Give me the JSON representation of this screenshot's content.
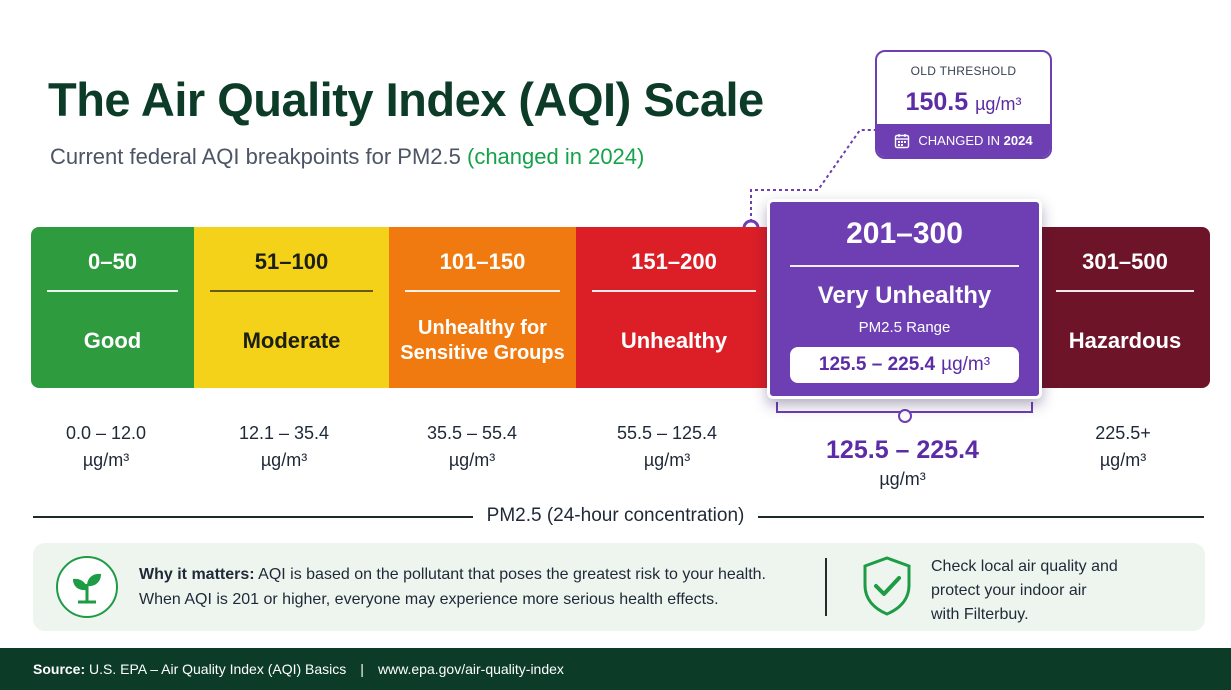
{
  "header": {
    "title": "The Air Quality Index (AQI) Scale",
    "subtitle_main": "Current federal AQI breakpoints for PM2.5",
    "subtitle_highlight": "(changed in 2024)"
  },
  "callout": {
    "label": "OLD THRESHOLD",
    "value": "150.5",
    "unit": "µg/m³",
    "footer_prefix": "CHANGED IN",
    "footer_year": "2024",
    "icon": "calendar-icon"
  },
  "chart_data": {
    "type": "table",
    "title": "The Air Quality Index (AQI) Scale",
    "subtitle": "Current federal AQI breakpoints for PM2.5 (changed in 2024)",
    "xlabel": "PM2.5 (24-hour concentration)",
    "categories": [
      {
        "aqi_range": "0–50",
        "category": "Good",
        "pm25": "0.0 – 12.0",
        "unit": "µg/m³",
        "color": "#2e9b3e"
      },
      {
        "aqi_range": "51–100",
        "category": "Moderate",
        "pm25": "12.1 – 35.4",
        "unit": "µg/m³",
        "color": "#f5d21a"
      },
      {
        "aqi_range": "101–150",
        "category": "Unhealthy for Sensitive Groups",
        "pm25": "35.5 – 55.4",
        "unit": "µg/m³",
        "color": "#f07a10"
      },
      {
        "aqi_range": "151–200",
        "category": "Unhealthy",
        "pm25": "55.5 – 125.4",
        "unit": "µg/m³",
        "color": "#dc1f26"
      },
      {
        "aqi_range": "201–300",
        "category": "Very Unhealthy",
        "pm25": "125.5 – 225.4",
        "unit": "µg/m³",
        "color": "#6d3fb3",
        "detail_label": "PM2.5 Range"
      },
      {
        "aqi_range": "301–500",
        "category": "Hazardous",
        "pm25": "225.5+",
        "unit": "µg/m³",
        "color": "#6e1428"
      }
    ],
    "old_threshold": 150.5,
    "changed_year": 2024
  },
  "info": {
    "why_label": "Why it matters:",
    "why_line1": "AQI is based on the pollutant that poses the greatest risk to your health.",
    "why_line2": "When AQI is 201 or higher, everyone may experience more serious health effects.",
    "check_line1": "Check local air quality and",
    "check_line2": "protect your indoor air",
    "check_line3": "with Filterbuy.",
    "leaf_icon": "plant-icon",
    "shield_icon": "shield-check-icon"
  },
  "footer": {
    "source_label": "Source:",
    "source_text": "U.S. EPA – Air Quality Index (AQI) Basics",
    "separator": "|",
    "url": "www.epa.gov/air-quality-index"
  }
}
